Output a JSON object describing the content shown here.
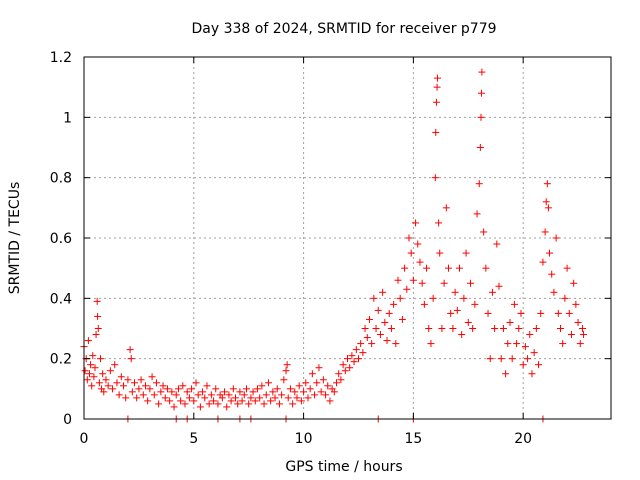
{
  "chart_data": {
    "type": "scatter",
    "title": "Day 338 of 2024, SRMTID for receiver p779",
    "xlabel": "GPS time / hours",
    "ylabel": "SRMTID / TECUs",
    "xlim": [
      0,
      24
    ],
    "ylim": [
      0,
      1.2
    ],
    "xticks": [
      0,
      5,
      10,
      15,
      20
    ],
    "xtick_labels": [
      "0",
      "5",
      "10",
      "15",
      "20"
    ],
    "yticks": [
      0,
      0.2,
      0.4,
      0.6,
      0.8,
      1.0,
      1.2
    ],
    "ytick_labels": [
      "0",
      "0.2",
      "0.4",
      "0.6",
      "0.8",
      "1",
      "1.2"
    ],
    "grid": true,
    "marker": "+",
    "color": "#ff0000",
    "series": [
      {
        "name": "SRMTID",
        "points": [
          [
            0.0,
            0.24
          ],
          [
            0.05,
            0.16
          ],
          [
            0.1,
            0.2
          ],
          [
            0.15,
            0.13
          ],
          [
            0.2,
            0.26
          ],
          [
            0.25,
            0.15
          ],
          [
            0.3,
            0.18
          ],
          [
            0.35,
            0.11
          ],
          [
            0.4,
            0.21
          ],
          [
            0.45,
            0.14
          ],
          [
            0.5,
            0.17
          ],
          [
            0.55,
            0.28
          ],
          [
            0.6,
            0.39
          ],
          [
            0.62,
            0.34
          ],
          [
            0.65,
            0.3
          ],
          [
            0.7,
            0.12
          ],
          [
            0.75,
            0.2
          ],
          [
            0.8,
            0.1
          ],
          [
            0.85,
            0.15
          ],
          [
            0.9,
            0.09
          ],
          [
            1.0,
            0.13
          ],
          [
            1.1,
            0.11
          ],
          [
            1.2,
            0.16
          ],
          [
            1.3,
            0.1
          ],
          [
            1.4,
            0.18
          ],
          [
            1.5,
            0.12
          ],
          [
            1.6,
            0.08
          ],
          [
            1.7,
            0.14
          ],
          [
            1.8,
            0.11
          ],
          [
            1.9,
            0.07
          ],
          [
            2.0,
            0.13
          ],
          [
            2.1,
            0.23
          ],
          [
            2.15,
            0.2
          ],
          [
            2.2,
            0.09
          ],
          [
            2.3,
            0.12
          ],
          [
            2.4,
            0.07
          ],
          [
            2.5,
            0.1
          ],
          [
            2.6,
            0.13
          ],
          [
            2.7,
            0.08
          ],
          [
            2.8,
            0.11
          ],
          [
            2.9,
            0.06
          ],
          [
            3.0,
            0.1
          ],
          [
            3.1,
            0.14
          ],
          [
            3.2,
            0.08
          ],
          [
            3.3,
            0.12
          ],
          [
            3.4,
            0.05
          ],
          [
            3.5,
            0.09
          ],
          [
            3.6,
            0.11
          ],
          [
            3.7,
            0.07
          ],
          [
            3.8,
            0.1
          ],
          [
            3.9,
            0.06
          ],
          [
            4.0,
            0.09
          ],
          [
            4.1,
            0.04
          ],
          [
            4.2,
            0.08
          ],
          [
            4.3,
            0.1
          ],
          [
            4.4,
            0.06
          ],
          [
            4.5,
            0.11
          ],
          [
            4.6,
            0.05
          ],
          [
            4.7,
            0.09
          ],
          [
            4.8,
            0.07
          ],
          [
            4.9,
            0.1
          ],
          [
            5.0,
            0.06
          ],
          [
            5.1,
            0.12
          ],
          [
            5.2,
            0.08
          ],
          [
            5.3,
            0.04
          ],
          [
            5.4,
            0.09
          ],
          [
            5.5,
            0.07
          ],
          [
            5.6,
            0.11
          ],
          [
            5.7,
            0.05
          ],
          [
            5.8,
            0.08
          ],
          [
            5.9,
            0.06
          ],
          [
            6.0,
            0.1
          ],
          [
            6.1,
            0.05
          ],
          [
            6.2,
            0.08
          ],
          [
            6.3,
            0.07
          ],
          [
            6.4,
            0.09
          ],
          [
            6.5,
            0.04
          ],
          [
            6.6,
            0.08
          ],
          [
            6.7,
            0.06
          ],
          [
            6.8,
            0.1
          ],
          [
            6.9,
            0.07
          ],
          [
            7.0,
            0.05
          ],
          [
            7.1,
            0.09
          ],
          [
            7.2,
            0.06
          ],
          [
            7.3,
            0.08
          ],
          [
            7.4,
            0.1
          ],
          [
            7.5,
            0.05
          ],
          [
            7.6,
            0.07
          ],
          [
            7.7,
            0.09
          ],
          [
            7.8,
            0.06
          ],
          [
            7.9,
            0.1
          ],
          [
            8.0,
            0.07
          ],
          [
            8.1,
            0.11
          ],
          [
            8.2,
            0.05
          ],
          [
            8.3,
            0.08
          ],
          [
            8.4,
            0.12
          ],
          [
            8.5,
            0.06
          ],
          [
            8.6,
            0.09
          ],
          [
            8.7,
            0.07
          ],
          [
            8.8,
            0.1
          ],
          [
            8.9,
            0.05
          ],
          [
            9.0,
            0.08
          ],
          [
            9.1,
            0.13
          ],
          [
            9.2,
            0.16
          ],
          [
            9.25,
            0.18
          ],
          [
            9.3,
            0.07
          ],
          [
            9.4,
            0.1
          ],
          [
            9.5,
            0.05
          ],
          [
            9.6,
            0.09
          ],
          [
            9.7,
            0.07
          ],
          [
            9.8,
            0.11
          ],
          [
            9.9,
            0.06
          ],
          [
            10.0,
            0.09
          ],
          [
            10.1,
            0.12
          ],
          [
            10.2,
            0.07
          ],
          [
            10.3,
            0.1
          ],
          [
            10.4,
            0.15
          ],
          [
            10.5,
            0.08
          ],
          [
            10.6,
            0.12
          ],
          [
            10.7,
            0.17
          ],
          [
            10.8,
            0.09
          ],
          [
            10.9,
            0.13
          ],
          [
            11.0,
            0.08
          ],
          [
            11.1,
            0.11
          ],
          [
            11.2,
            0.06
          ],
          [
            11.3,
            0.1
          ],
          [
            11.4,
            0.09
          ],
          [
            11.5,
            0.12
          ],
          [
            11.6,
            0.15
          ],
          [
            11.7,
            0.13
          ],
          [
            11.8,
            0.18
          ],
          [
            11.9,
            0.16
          ],
          [
            12.0,
            0.2
          ],
          [
            12.1,
            0.17
          ],
          [
            12.2,
            0.21
          ],
          [
            12.3,
            0.19
          ],
          [
            12.4,
            0.23
          ],
          [
            12.5,
            0.2
          ],
          [
            12.6,
            0.25
          ],
          [
            12.7,
            0.22
          ],
          [
            12.8,
            0.3
          ],
          [
            12.9,
            0.27
          ],
          [
            13.0,
            0.33
          ],
          [
            13.1,
            0.25
          ],
          [
            13.2,
            0.4
          ],
          [
            13.3,
            0.3
          ],
          [
            13.4,
            0.36
          ],
          [
            13.5,
            0.28
          ],
          [
            13.6,
            0.42
          ],
          [
            13.7,
            0.32
          ],
          [
            13.8,
            0.26
          ],
          [
            13.9,
            0.35
          ],
          [
            14.0,
            0.3
          ],
          [
            14.1,
            0.38
          ],
          [
            14.2,
            0.25
          ],
          [
            14.3,
            0.46
          ],
          [
            14.4,
            0.4
          ],
          [
            14.5,
            0.33
          ],
          [
            14.6,
            0.5
          ],
          [
            14.7,
            0.43
          ],
          [
            14.8,
            0.6
          ],
          [
            14.9,
            0.55
          ],
          [
            15.0,
            0.46
          ],
          [
            15.1,
            0.65
          ],
          [
            15.2,
            0.58
          ],
          [
            15.3,
            0.52
          ],
          [
            15.4,
            0.45
          ],
          [
            15.5,
            0.38
          ],
          [
            15.6,
            0.5
          ],
          [
            15.7,
            0.3
          ],
          [
            15.8,
            0.25
          ],
          [
            15.9,
            0.4
          ],
          [
            16.0,
            0.8
          ],
          [
            16.02,
            0.95
          ],
          [
            16.05,
            1.05
          ],
          [
            16.08,
            1.1
          ],
          [
            16.1,
            1.13
          ],
          [
            16.15,
            0.65
          ],
          [
            16.2,
            0.55
          ],
          [
            16.3,
            0.3
          ],
          [
            16.4,
            0.45
          ],
          [
            16.5,
            0.7
          ],
          [
            16.6,
            0.5
          ],
          [
            16.7,
            0.35
          ],
          [
            16.8,
            0.3
          ],
          [
            16.9,
            0.42
          ],
          [
            17.0,
            0.36
          ],
          [
            17.1,
            0.5
          ],
          [
            17.2,
            0.28
          ],
          [
            17.3,
            0.4
          ],
          [
            17.4,
            0.55
          ],
          [
            17.5,
            0.32
          ],
          [
            17.6,
            0.45
          ],
          [
            17.7,
            0.3
          ],
          [
            17.8,
            0.38
          ],
          [
            17.9,
            0.68
          ],
          [
            18.0,
            0.78
          ],
          [
            18.05,
            0.9
          ],
          [
            18.08,
            1.0
          ],
          [
            18.1,
            1.08
          ],
          [
            18.12,
            1.15
          ],
          [
            18.2,
            0.62
          ],
          [
            18.3,
            0.5
          ],
          [
            18.4,
            0.35
          ],
          [
            18.5,
            0.2
          ],
          [
            18.6,
            0.42
          ],
          [
            18.7,
            0.3
          ],
          [
            18.8,
            0.58
          ],
          [
            18.9,
            0.44
          ],
          [
            19.0,
            0.2
          ],
          [
            19.1,
            0.3
          ],
          [
            19.2,
            0.15
          ],
          [
            19.3,
            0.25
          ],
          [
            19.4,
            0.32
          ],
          [
            19.5,
            0.2
          ],
          [
            19.6,
            0.38
          ],
          [
            19.7,
            0.25
          ],
          [
            19.8,
            0.3
          ],
          [
            19.9,
            0.35
          ],
          [
            20.0,
            0.18
          ],
          [
            20.1,
            0.24
          ],
          [
            20.2,
            0.2
          ],
          [
            20.3,
            0.28
          ],
          [
            20.4,
            0.15
          ],
          [
            20.5,
            0.22
          ],
          [
            20.6,
            0.3
          ],
          [
            20.7,
            0.18
          ],
          [
            20.8,
            0.35
          ],
          [
            20.9,
            0.52
          ],
          [
            21.0,
            0.62
          ],
          [
            21.05,
            0.72
          ],
          [
            21.1,
            0.78
          ],
          [
            21.15,
            0.7
          ],
          [
            21.2,
            0.55
          ],
          [
            21.3,
            0.48
          ],
          [
            21.4,
            0.42
          ],
          [
            21.5,
            0.6
          ],
          [
            21.6,
            0.35
          ],
          [
            21.7,
            0.3
          ],
          [
            21.8,
            0.25
          ],
          [
            21.9,
            0.4
          ],
          [
            22.0,
            0.5
          ],
          [
            22.1,
            0.35
          ],
          [
            22.2,
            0.28
          ],
          [
            22.3,
            0.45
          ],
          [
            22.4,
            0.38
          ],
          [
            22.5,
            0.32
          ],
          [
            22.6,
            0.25
          ],
          [
            22.7,
            0.3
          ],
          [
            22.75,
            0.28
          ],
          [
            2.0,
            0.0
          ],
          [
            4.2,
            0.0
          ],
          [
            4.7,
            0.0
          ],
          [
            6.1,
            0.0
          ],
          [
            7.1,
            0.0
          ],
          [
            7.6,
            0.0
          ],
          [
            9.2,
            0.0
          ],
          [
            13.4,
            0.0
          ],
          [
            15.0,
            0.0
          ],
          [
            20.9,
            0.0
          ]
        ]
      }
    ]
  }
}
